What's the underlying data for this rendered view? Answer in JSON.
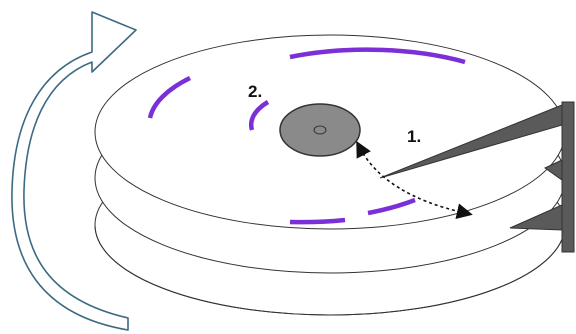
{
  "diagram": {
    "labels": {
      "one": "1.",
      "two": "2."
    },
    "colors": {
      "track_arc": "#7b2fd6",
      "rotation_arrow": "#3c6a82",
      "hub": "#8a8a8a",
      "actuator": "#5a5a5a",
      "platter_stroke": "#333333",
      "background": "#ffffff"
    },
    "icons": {
      "rotation": "curved-rotation-arrow",
      "seek": "double-headed-dashed-arrow"
    }
  }
}
